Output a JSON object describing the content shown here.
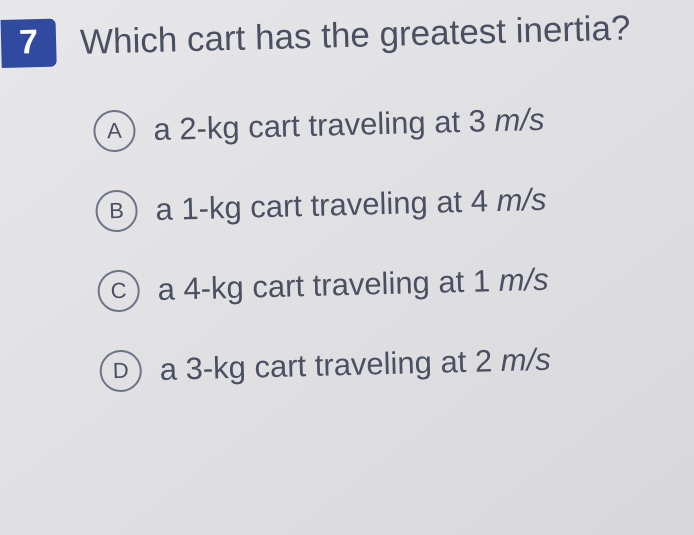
{
  "question_number": "7",
  "question_text": "Which cart has the greatest inertia?",
  "options": [
    {
      "letter": "A",
      "prefix": "a 2-kg cart traveling at 3 ",
      "unit": "m/s"
    },
    {
      "letter": "B",
      "prefix": "a 1-kg cart traveling at 4 ",
      "unit": "m/s"
    },
    {
      "letter": "C",
      "prefix": "a 4-kg cart traveling at 1 ",
      "unit": "m/s"
    },
    {
      "letter": "D",
      "prefix": "a 3-kg cart traveling at 2 ",
      "unit": "m/s"
    }
  ],
  "colors": {
    "badge_bg": "#2f4a9e",
    "text": "#4a5062",
    "page_bg": "#e4e4e8"
  }
}
